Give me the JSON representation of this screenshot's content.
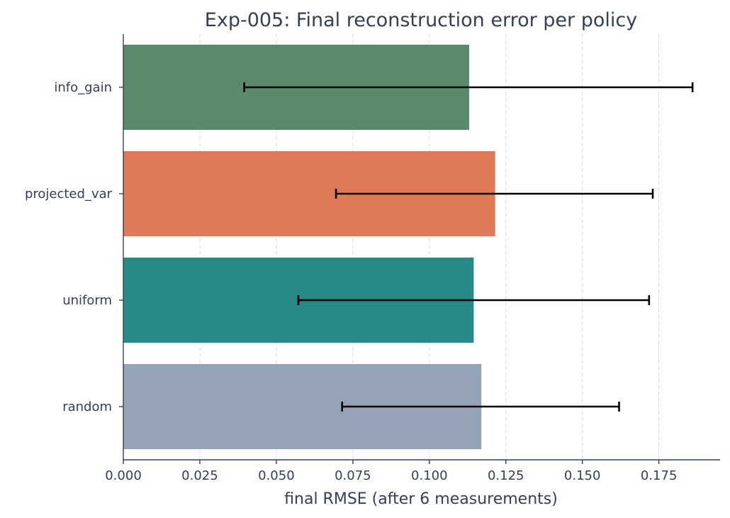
{
  "chart_data": {
    "type": "bar",
    "orientation": "horizontal",
    "title": "Exp-005: Final reconstruction error per policy",
    "xlabel": "final RMSE (after 6 measurements)",
    "ylabel": "",
    "xlim": [
      0,
      0.195
    ],
    "xticks": [
      "0.000",
      "0.025",
      "0.050",
      "0.075",
      "0.100",
      "0.125",
      "0.150",
      "0.175"
    ],
    "grid": "x-dashed",
    "categories": [
      "info_gain",
      "projected_var",
      "uniform",
      "random"
    ],
    "values": [
      0.113,
      0.1215,
      0.1145,
      0.117
    ],
    "error_low": [
      0.0395,
      0.0695,
      0.0572,
      0.0715
    ],
    "error_high": [
      0.186,
      0.173,
      0.1718,
      0.162
    ],
    "colors": [
      "#5b8a6a",
      "#e07a56",
      "#288a87",
      "#94a3b8"
    ]
  }
}
